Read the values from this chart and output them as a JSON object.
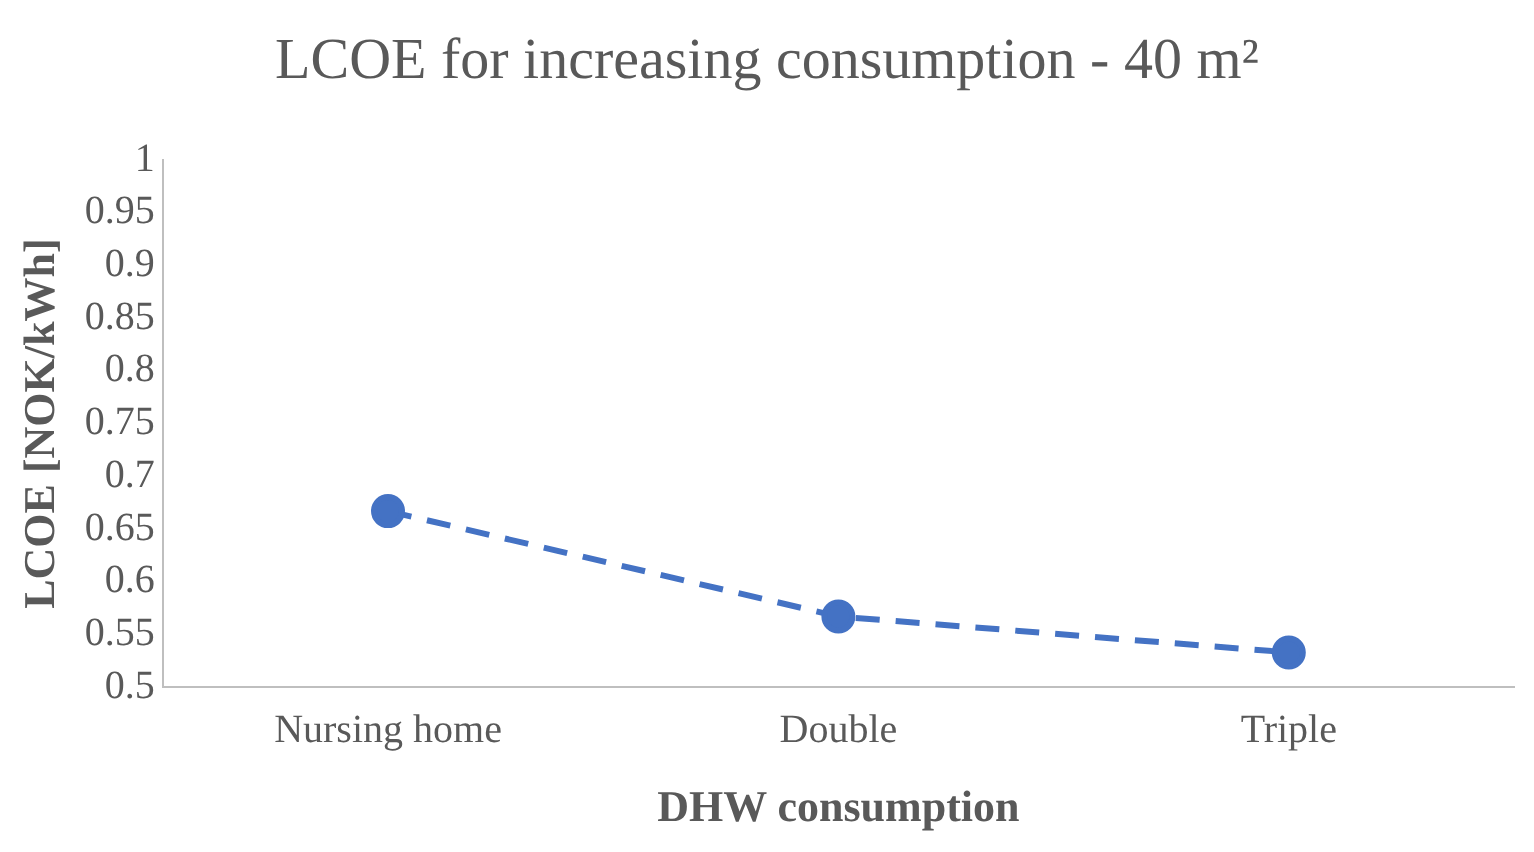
{
  "chart_data": {
    "type": "line",
    "title": "LCOE for increasing consumption - 40 m²",
    "xlabel": "DHW consumption",
    "ylabel": "LCOE [NOK/kWh]",
    "categories": [
      "Nursing home",
      "Double",
      "Triple"
    ],
    "series": [
      {
        "color": "#4472c4",
        "values": [
          0.667,
          0.567,
          0.533
        ]
      }
    ],
    "ylim": [
      0.5,
      1
    ],
    "yticks": [
      0.5,
      0.55,
      0.6,
      0.65,
      0.7,
      0.75,
      0.8,
      0.85,
      0.9,
      0.95,
      1
    ],
    "grid": false,
    "legend": false,
    "marker": "circle",
    "line_style": "dashed"
  }
}
